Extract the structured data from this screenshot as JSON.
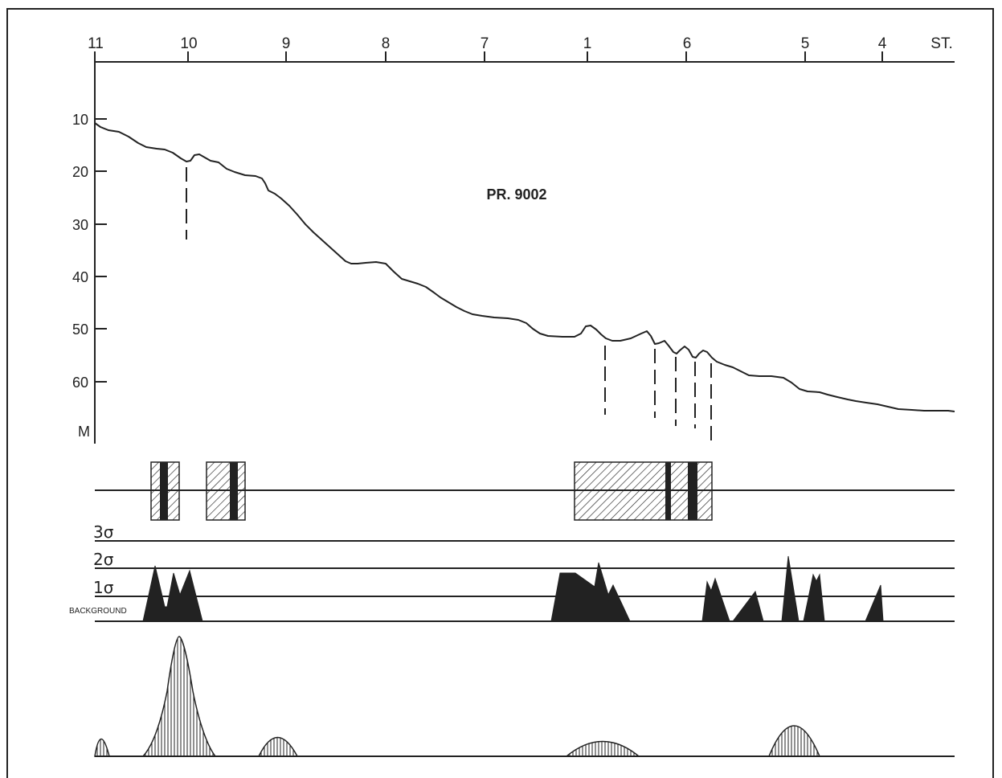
{
  "profile": {
    "title": "PR. 9002",
    "station_unit": "ST.",
    "depth_unit": "M",
    "stations": [
      "11",
      "10",
      "9",
      "8",
      "7",
      "1",
      "6",
      "5",
      "4"
    ],
    "depths": [
      "10",
      "20",
      "30",
      "40",
      "50",
      "60"
    ]
  },
  "anomaly_scale": {
    "levels": [
      "3σ",
      "2σ",
      "1σ"
    ],
    "background_label": "BACKGROUND"
  },
  "colors": {
    "ink": "#222222",
    "paper": "#ffffff"
  }
}
